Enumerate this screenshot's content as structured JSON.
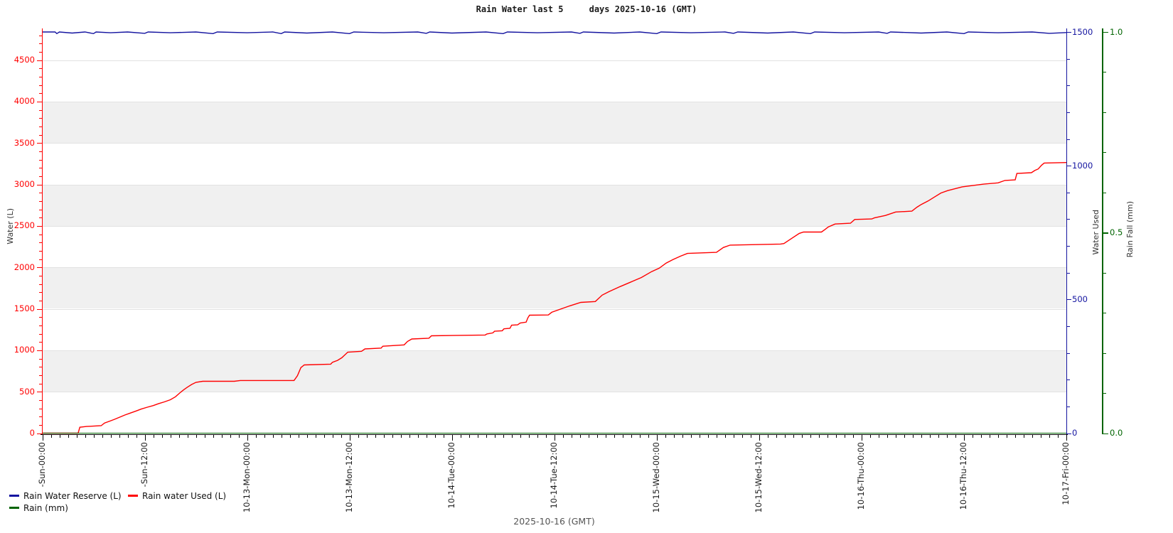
{
  "title": "Rain Water last 5     days 2025-10-16 (GMT)",
  "footer": "2025-10-16 (GMT)",
  "colors": {
    "reserve_blue": "#1414a0",
    "used_red": "#ff0000",
    "rain_green": "#006400",
    "band_gray": "#f0f0f0",
    "grid_gray": "#e2e2e2",
    "axis_black": "#000000",
    "footer_text": "#555555",
    "axis_title_text": "#333333"
  },
  "chart_data": {
    "type": "line",
    "title": "Rain Water last 5 days 2025-10-16 (GMT)",
    "x": {
      "unit": "hours since 2025-10-12 00:00 GMT",
      "range": [
        0,
        120
      ],
      "minor_tick_hours": 1,
      "major_tick_hours": 12,
      "tick_labels": [
        {
          "t": 0,
          "label": "-Sun-00:00"
        },
        {
          "t": 12,
          "label": "-Sun-12:00"
        },
        {
          "t": 24,
          "label": "10-13-Mon-00:00"
        },
        {
          "t": 36,
          "label": "10-13-Mon-12:00"
        },
        {
          "t": 48,
          "label": "10-14-Tue-00:00"
        },
        {
          "t": 60,
          "label": "10-14-Tue-12:00"
        },
        {
          "t": 72,
          "label": "10-15-Wed-00:00"
        },
        {
          "t": 84,
          "label": "10-15-Wed-12:00"
        },
        {
          "t": 96,
          "label": "10-16-Thu-00:00"
        },
        {
          "t": 108,
          "label": "10-16-Thu-12:00"
        },
        {
          "t": 120,
          "label": "10-17-Fri-00:00"
        }
      ]
    },
    "axes": {
      "left": {
        "title": "Water (L)",
        "color": "#ff0000",
        "ticks": [
          0,
          500,
          1000,
          1500,
          2000,
          2500,
          3000,
          3500,
          4000,
          4500
        ],
        "minor_step": 100,
        "top_value": 4884
      },
      "used": {
        "title": "Water Used",
        "color": "#1414a0",
        "ticks": [
          0,
          500,
          1000,
          1500
        ],
        "minor_step": 100,
        "top_value": 1500
      },
      "rain": {
        "title": "Rain Fall (mm)",
        "color": "#006400",
        "ticks": [
          {
            "v": 0,
            "label": "0.0"
          },
          {
            "v": 0.5,
            "label": "0.5"
          },
          {
            "v": 1,
            "label": "1.0"
          }
        ],
        "minor_step": 0.1,
        "top_value": 1.0
      }
    },
    "legend": [
      {
        "label": "Rain Water Reserve (L)",
        "color": "#1414a0"
      },
      {
        "label": "Rain water Used (L)",
        "color": "#ff0000"
      },
      {
        "label": "Rain (mm)",
        "color": "#006400"
      }
    ],
    "layout_hints": {
      "legend_position": "bottom-left",
      "background_bands_left_axis": [
        [
          500,
          1000
        ],
        [
          1500,
          2000
        ],
        [
          2500,
          3000
        ],
        [
          3500,
          4000
        ]
      ],
      "grid": "horizontal every 500 L"
    },
    "series": [
      {
        "name": "Rain Water Reserve (L)",
        "axis": "used",
        "color": "#1414a0",
        "points": [
          [
            0,
            1500
          ],
          [
            1.5,
            1500
          ],
          [
            1.7,
            1494
          ],
          [
            2,
            1500
          ],
          [
            3.5,
            1496
          ],
          [
            5,
            1500
          ],
          [
            6,
            1494
          ],
          [
            6.3,
            1500
          ],
          [
            8,
            1497
          ],
          [
            10,
            1500
          ],
          [
            12,
            1495
          ],
          [
            12.4,
            1500
          ],
          [
            15,
            1497
          ],
          [
            18,
            1500
          ],
          [
            20,
            1494
          ],
          [
            20.5,
            1500
          ],
          [
            24,
            1497
          ],
          [
            27,
            1500
          ],
          [
            28,
            1494
          ],
          [
            28.4,
            1500
          ],
          [
            31,
            1496
          ],
          [
            34,
            1500
          ],
          [
            36,
            1494
          ],
          [
            36.5,
            1500
          ],
          [
            40,
            1497
          ],
          [
            44,
            1500
          ],
          [
            45,
            1495
          ],
          [
            45.4,
            1500
          ],
          [
            48,
            1496
          ],
          [
            52,
            1500
          ],
          [
            54,
            1494
          ],
          [
            54.5,
            1500
          ],
          [
            58,
            1497
          ],
          [
            62,
            1500
          ],
          [
            63,
            1495
          ],
          [
            63.4,
            1500
          ],
          [
            67,
            1496
          ],
          [
            70,
            1500
          ],
          [
            72,
            1494
          ],
          [
            72.5,
            1500
          ],
          [
            76,
            1497
          ],
          [
            80,
            1500
          ],
          [
            81,
            1495
          ],
          [
            81.5,
            1500
          ],
          [
            85,
            1496
          ],
          [
            88,
            1500
          ],
          [
            90,
            1494
          ],
          [
            90.5,
            1500
          ],
          [
            94,
            1497
          ],
          [
            98,
            1500
          ],
          [
            99,
            1495
          ],
          [
            99.4,
            1500
          ],
          [
            103,
            1496
          ],
          [
            106,
            1500
          ],
          [
            108,
            1494
          ],
          [
            108.5,
            1500
          ],
          [
            112,
            1497
          ],
          [
            116,
            1500
          ],
          [
            118,
            1495
          ],
          [
            120,
            1498
          ]
        ]
      },
      {
        "name": "Rain water Used (L)",
        "axis": "used",
        "color": "#ff0000",
        "points": [
          [
            0,
            0
          ],
          [
            4.2,
            0
          ],
          [
            4.4,
            22
          ],
          [
            5.2,
            25
          ],
          [
            6.9,
            28
          ],
          [
            7.3,
            38
          ],
          [
            7.9,
            45
          ],
          [
            8.5,
            52
          ],
          [
            9.1,
            60
          ],
          [
            9.7,
            68
          ],
          [
            10.3,
            75
          ],
          [
            11,
            83
          ],
          [
            11.6,
            90
          ],
          [
            12.3,
            97
          ],
          [
            13,
            103
          ],
          [
            13.6,
            110
          ],
          [
            14.3,
            117
          ],
          [
            15,
            125
          ],
          [
            15.6,
            136
          ],
          [
            16.1,
            150
          ],
          [
            16.6,
            163
          ],
          [
            17,
            172
          ],
          [
            17.5,
            182
          ],
          [
            18,
            190
          ],
          [
            18.8,
            194
          ],
          [
            22.5,
            194
          ],
          [
            23.2,
            197
          ],
          [
            29.5,
            197
          ],
          [
            29.9,
            215
          ],
          [
            30.3,
            245
          ],
          [
            30.7,
            255
          ],
          [
            33.8,
            258
          ],
          [
            34,
            265
          ],
          [
            34.6,
            272
          ],
          [
            35.1,
            282
          ],
          [
            35.8,
            303
          ],
          [
            37.4,
            306
          ],
          [
            37.8,
            315
          ],
          [
            39.7,
            318
          ],
          [
            39.9,
            325
          ],
          [
            42.4,
            330
          ],
          [
            42.8,
            343
          ],
          [
            43.3,
            352
          ],
          [
            45.3,
            355
          ],
          [
            45.6,
            364
          ],
          [
            51.9,
            367
          ],
          [
            52.1,
            371
          ],
          [
            52.8,
            375
          ],
          [
            53,
            381
          ],
          [
            53.9,
            383
          ],
          [
            54.1,
            390
          ],
          [
            54.8,
            392
          ],
          [
            55,
            404
          ],
          [
            55.7,
            405
          ],
          [
            56,
            412
          ],
          [
            56.7,
            415
          ],
          [
            56.9,
            431
          ],
          [
            57.1,
            441
          ],
          [
            59.3,
            442
          ],
          [
            59.7,
            452
          ],
          [
            61.8,
            476
          ],
          [
            63.1,
            489
          ],
          [
            64.8,
            492
          ],
          [
            65.6,
            516
          ],
          [
            66.4,
            529
          ],
          [
            67.7,
            548
          ],
          [
            68.9,
            564
          ],
          [
            70.2,
            582
          ],
          [
            71.4,
            604
          ],
          [
            72.3,
            617
          ],
          [
            73.1,
            636
          ],
          [
            73.9,
            649
          ],
          [
            74.8,
            662
          ],
          [
            75.6,
            672
          ],
          [
            79,
            676
          ],
          [
            79.8,
            694
          ],
          [
            80.6,
            703
          ],
          [
            86.5,
            707
          ],
          [
            86.9,
            709
          ],
          [
            87.7,
            726
          ],
          [
            88.7,
            747
          ],
          [
            89.2,
            752
          ],
          [
            91.3,
            752
          ],
          [
            91.7,
            761
          ],
          [
            92.1,
            771
          ],
          [
            92.9,
            782
          ],
          [
            94.7,
            785
          ],
          [
            95.2,
            799
          ],
          [
            97.2,
            801
          ],
          [
            97.5,
            805
          ],
          [
            98.8,
            814
          ],
          [
            100,
            827
          ],
          [
            101.9,
            830
          ],
          [
            102.5,
            845
          ],
          [
            103,
            855
          ],
          [
            103.8,
            868
          ],
          [
            104.4,
            880
          ],
          [
            105.3,
            898
          ],
          [
            106.1,
            907
          ],
          [
            107.8,
            921
          ],
          [
            110.3,
            931
          ],
          [
            112,
            936
          ],
          [
            112.8,
            945
          ],
          [
            114,
            947
          ],
          [
            114.2,
            971
          ],
          [
            115.9,
            974
          ],
          [
            116.3,
            982
          ],
          [
            116.7,
            988
          ],
          [
            117.1,
            1002
          ],
          [
            117.4,
            1010
          ],
          [
            120,
            1012
          ]
        ]
      },
      {
        "name": "Rain (mm)",
        "axis": "rain",
        "color": "#006400",
        "points": [
          [
            0,
            0
          ],
          [
            120,
            0
          ]
        ]
      }
    ]
  }
}
